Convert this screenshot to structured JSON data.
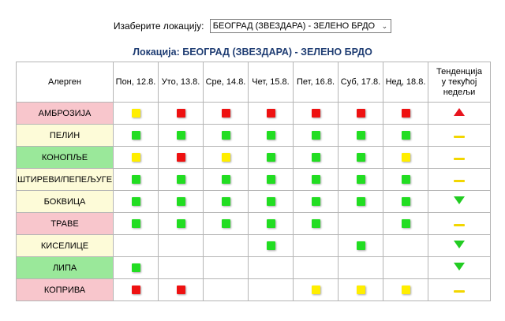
{
  "selector": {
    "label": "Изаберите локацију:",
    "value": "БЕОГРАД (ЗВЕЗДАРА) - ЗЕЛЕНО БРДО",
    "icon": "chevron-down-icon"
  },
  "title": "Локација: БЕОГРАД (ЗВЕЗДАРА) - ЗЕЛЕНО БРДО",
  "table": {
    "allergen_header": "Алерген",
    "days": [
      "Пон, 12.8.",
      "Уто, 13.8.",
      "Сре, 14.8.",
      "Чет, 15.8.",
      "Пет, 16.8.",
      "Суб, 17.8.",
      "Нед, 18.8."
    ],
    "trend_header": [
      "Тенденција",
      "у текућој",
      "недељи"
    ]
  },
  "colors": {
    "low": "#22dd22",
    "medium": "#ffee00",
    "high": "#ee1111",
    "row_pink": "#f8c6cc",
    "row_yellow": "#fdfbd8",
    "row_green": "#9ae89a",
    "trend_up": "#e8141e",
    "trend_flat": "#f2d600",
    "trend_down": "#22cc22"
  },
  "rows": [
    {
      "name": "АМБРОЗИЈА",
      "bg": "pink",
      "levels": [
        "medium",
        "high",
        "high",
        "high",
        "high",
        "high",
        "high"
      ],
      "trend": "up"
    },
    {
      "name": "ПЕЛИН",
      "bg": "yellow",
      "levels": [
        "low",
        "low",
        "low",
        "low",
        "low",
        "low",
        "low"
      ],
      "trend": "flat"
    },
    {
      "name": "КОНОПЉЕ",
      "bg": "green",
      "levels": [
        "medium",
        "high",
        "medium",
        "low",
        "low",
        "low",
        "medium"
      ],
      "trend": "flat"
    },
    {
      "name": "ШТИРЕВИ/ПЕПЕЉУГЕ",
      "bg": "yellow",
      "levels": [
        "low",
        "low",
        "low",
        "low",
        "low",
        "low",
        "low"
      ],
      "trend": "flat"
    },
    {
      "name": "БОКВИЦА",
      "bg": "yellow",
      "levels": [
        "low",
        "low",
        "low",
        "low",
        "low",
        "low",
        "low"
      ],
      "trend": "down"
    },
    {
      "name": "ТРАВЕ",
      "bg": "pink",
      "levels": [
        "low",
        "low",
        "low",
        "low",
        "low",
        "",
        "low"
      ],
      "trend": "flat"
    },
    {
      "name": "КИСЕЛИЦЕ",
      "bg": "yellow",
      "levels": [
        "",
        "",
        "",
        "low",
        "",
        "low",
        ""
      ],
      "trend": "down"
    },
    {
      "name": "ЛИПА",
      "bg": "green",
      "levels": [
        "low",
        "",
        "",
        "",
        "",
        "",
        ""
      ],
      "trend": "down"
    },
    {
      "name": "КОПРИВА",
      "bg": "pink",
      "levels": [
        "high",
        "high",
        "",
        "",
        "medium",
        "medium",
        "medium"
      ],
      "trend": "flat"
    }
  ]
}
